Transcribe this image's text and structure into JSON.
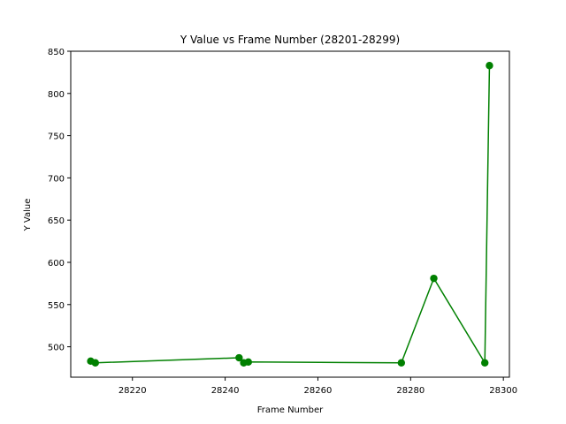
{
  "chart_data": {
    "type": "line",
    "title": "Y Value vs Frame Number (28201-28299)",
    "xlabel": "Frame Number",
    "ylabel": "Y Value",
    "xlim": [
      28206.7,
      28301.3
    ],
    "ylim": [
      464,
      850
    ],
    "xticks": [
      28220,
      28240,
      28260,
      28280,
      28300
    ],
    "yticks": [
      500,
      550,
      600,
      650,
      700,
      750,
      800,
      850
    ],
    "grid": false,
    "legend": "none",
    "series": [
      {
        "color": "#008000",
        "marker": "circle",
        "x": [
          28211,
          28212,
          28243,
          28244,
          28245,
          28278,
          28285,
          28296,
          28297
        ],
        "y": [
          483,
          481,
          487,
          481,
          482,
          481,
          581,
          481,
          833
        ]
      }
    ]
  }
}
